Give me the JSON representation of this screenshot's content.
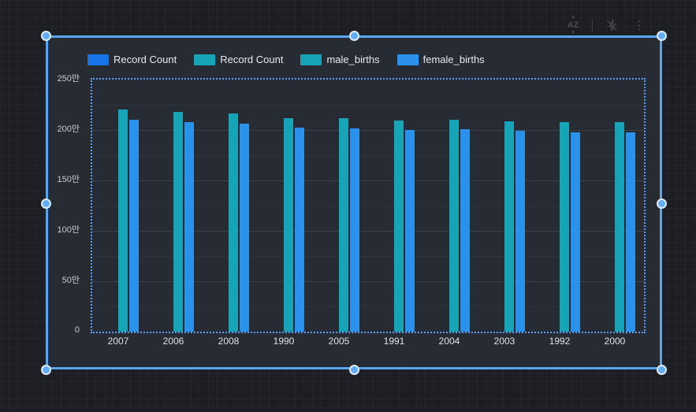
{
  "toolbar": {
    "icons": [
      {
        "name": "sort-az-icon",
        "glyph": "AZ"
      },
      {
        "name": "lightning-off-icon"
      },
      {
        "name": "kebab-menu-icon",
        "glyph": "⋮"
      }
    ]
  },
  "colors": {
    "selection_accent": "#58a6f2",
    "handle_fill": "#64acf7",
    "dotted_border": "#5d9ef0",
    "panel_background": "#262b34",
    "page_background": "#1c1e23",
    "series_blue": "#1673e8",
    "series_teal": "#16a4b6",
    "series_light_blue": "#2b92ec"
  },
  "chart_data": {
    "type": "bar",
    "title": "",
    "xlabel": "",
    "ylabel": "",
    "unit": "만 (×10,000)",
    "categories": [
      "2007",
      "2006",
      "2008",
      "1990",
      "2005",
      "1991",
      "2004",
      "2003",
      "1992",
      "2000"
    ],
    "series": [
      {
        "name": "Record Count",
        "color": "#1673e8",
        "values": []
      },
      {
        "name": "Record Count",
        "color": "#16a4b6",
        "values": []
      },
      {
        "name": "male_births",
        "color": "#16a4b6",
        "values": [
          220,
          218,
          216.5,
          212,
          211.5,
          209.5,
          210,
          208.5,
          208,
          207.5
        ]
      },
      {
        "name": "female_births",
        "color": "#2b92ec",
        "values": [
          210,
          208,
          206.5,
          202.5,
          201.5,
          200,
          200.5,
          199.5,
          198,
          197.5
        ]
      }
    ],
    "ylim": [
      0,
      250
    ],
    "yticks": [
      {
        "value": 0,
        "label": "0"
      },
      {
        "value": 50,
        "label": "50만"
      },
      {
        "value": 100,
        "label": "100만"
      },
      {
        "value": 150,
        "label": "150만"
      },
      {
        "value": 200,
        "label": "200만"
      },
      {
        "value": 250,
        "label": "250만"
      }
    ],
    "minor_tick_step": 25,
    "grid": true,
    "legend_position": "top-left"
  }
}
